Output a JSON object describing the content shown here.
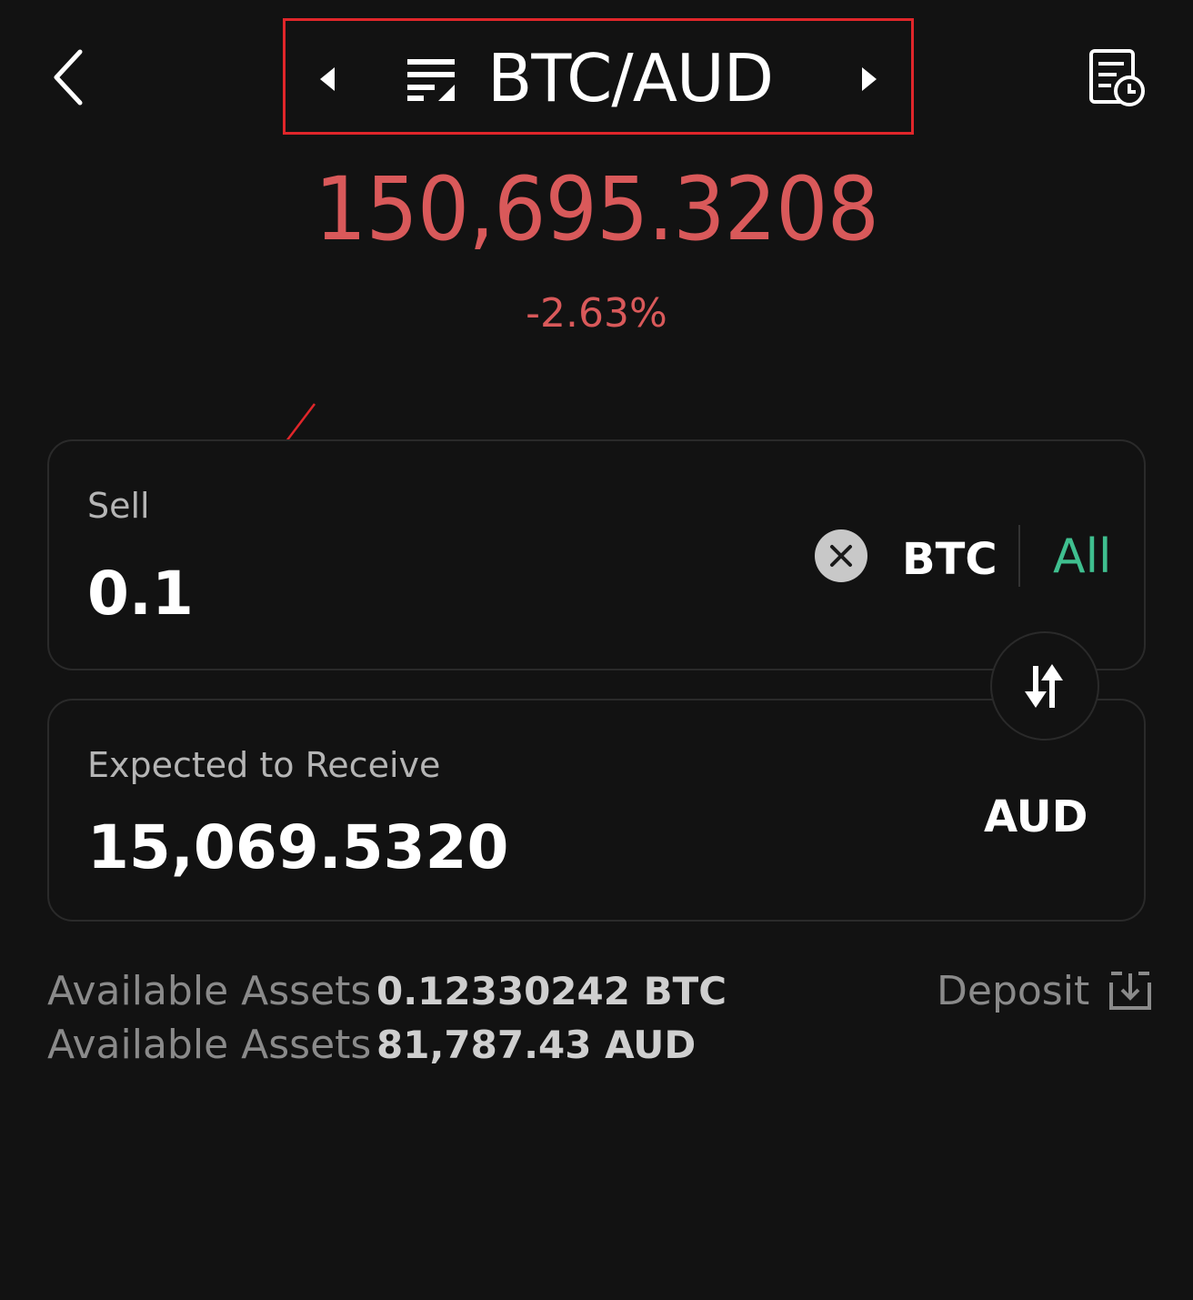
{
  "header": {
    "pair_title": "BTC/AUD"
  },
  "ticker": {
    "price": "150,695.3208",
    "change": "-2.63%"
  },
  "sell_card": {
    "label": "Sell",
    "amount": "0.1",
    "currency": "BTC",
    "all_label": "All"
  },
  "receive_card": {
    "label": "Expected to Receive",
    "amount": "15,069.5320",
    "currency": "AUD"
  },
  "assets": [
    {
      "label": "Available Assets",
      "value": "0.12330242 BTC"
    },
    {
      "label": "Available Assets",
      "value": "81,787.43 AUD"
    }
  ],
  "deposit": {
    "label": "Deposit"
  },
  "colors": {
    "background": "#121212",
    "negative": "#d9595a",
    "accent_green": "#3fbf8f",
    "highlight_border": "#e0262a"
  },
  "icons": [
    "back-arrow-icon",
    "caret-left-icon",
    "menu-list-icon",
    "caret-right-icon",
    "order-history-icon",
    "clear-icon",
    "swap-icon",
    "deposit-icon"
  ]
}
